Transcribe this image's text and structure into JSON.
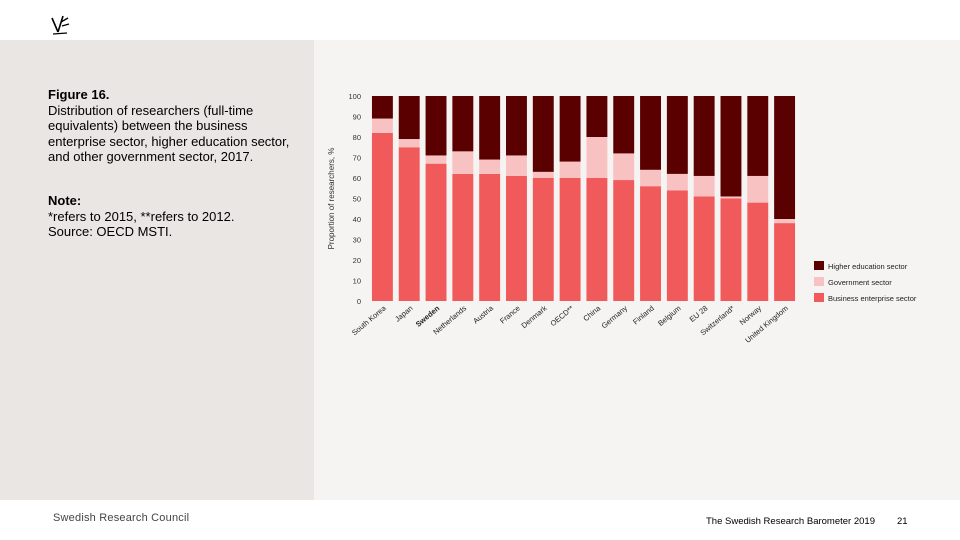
{
  "figure": {
    "title": "Figure 16.",
    "description": "Distribution of researchers (full-time equivalents) between the business enterprise sector, higher education sector, and other government sector, 2017."
  },
  "note": {
    "title": "Note:",
    "lines": [
      "*refers to 2015, **refers to 2012.",
      "Source: OECD MSTI."
    ]
  },
  "footer": {
    "org": "Swedish Research Council",
    "publication": "The Swedish Research Barometer 2019",
    "page": "21"
  },
  "colors": {
    "higher_education": "#5a0000",
    "government": "#f8c2c2",
    "business": "#f15a5a"
  },
  "chart_data": {
    "type": "bar",
    "stacked": true,
    "ylabel": "Proportion of researchers, %",
    "ylim": [
      0,
      100
    ],
    "yticks": [
      0,
      10,
      20,
      30,
      40,
      50,
      60,
      70,
      80,
      90,
      100
    ],
    "categories": [
      "South Korea",
      "Japan",
      "Sweden",
      "Netherlands",
      "Austria",
      "France",
      "Denmark",
      "OECD**",
      "China",
      "Germany",
      "Finland",
      "Belgium",
      "EU 28",
      "Switzerland*",
      "Norway",
      "United Kingdom"
    ],
    "highlight": "Sweden",
    "series": [
      {
        "name": "Business enterprise sector",
        "values": [
          82,
          75,
          67,
          62,
          62,
          61,
          60,
          60,
          60,
          59,
          56,
          54,
          51,
          50,
          48,
          38
        ]
      },
      {
        "name": "Government sector",
        "values": [
          7,
          4,
          4,
          11,
          7,
          10,
          3,
          8,
          20,
          13,
          8,
          8,
          10,
          1,
          13,
          2
        ]
      },
      {
        "name": "Higher education sector",
        "values": [
          11,
          21,
          29,
          27,
          31,
          29,
          37,
          32,
          20,
          28,
          36,
          38,
          39,
          49,
          39,
          60
        ]
      }
    ],
    "legend": [
      "Higher education sector",
      "Government sector",
      "Business enterprise sector"
    ],
    "legend_position": "right"
  }
}
